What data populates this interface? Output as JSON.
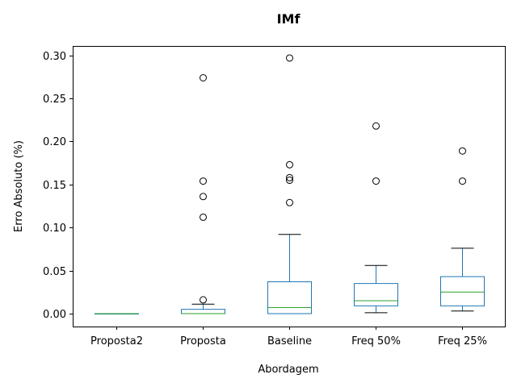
{
  "chart_data": {
    "type": "box",
    "title": "IMf",
    "xlabel": "Abordagem",
    "ylabel": "Erro Absoluto (%)",
    "ylim": [
      -0.015,
      0.311
    ],
    "yticks": [
      0.0,
      0.05,
      0.1,
      0.15,
      0.2,
      0.25,
      0.3
    ],
    "ytick_labels": [
      "0.00",
      "0.05",
      "0.10",
      "0.15",
      "0.20",
      "0.25",
      "0.30"
    ],
    "grid": false,
    "colors": {
      "box": "#1f77b4",
      "median": "#2ca02c",
      "whisker": "#1f77b4",
      "cap": "#000000",
      "flier": "#000000"
    },
    "categories": [
      "Proposta2",
      "Proposta",
      "Baseline",
      "Freq 50%",
      "Freq 25%"
    ],
    "boxes": [
      {
        "category": "Proposta2",
        "whislo": 0.0,
        "q1": 0.0,
        "med": 0.0,
        "q3": 0.0,
        "whishi": 0.0,
        "fliers": []
      },
      {
        "category": "Proposta",
        "whislo": 0.0,
        "q1": 0.0,
        "med": 0.0,
        "q3": 0.005,
        "whishi": 0.011,
        "fliers": [
          0.016,
          0.112,
          0.136,
          0.154,
          0.274
        ]
      },
      {
        "category": "Baseline",
        "whislo": 0.0,
        "q1": 0.0,
        "med": 0.007,
        "q3": 0.037,
        "whishi": 0.092,
        "fliers": [
          0.129,
          0.155,
          0.158,
          0.173,
          0.297
        ]
      },
      {
        "category": "Freq 50%",
        "whislo": 0.001,
        "q1": 0.009,
        "med": 0.015,
        "q3": 0.035,
        "whishi": 0.056,
        "fliers": [
          0.154,
          0.218
        ]
      },
      {
        "category": "Freq 25%",
        "whislo": 0.003,
        "q1": 0.009,
        "med": 0.025,
        "q3": 0.043,
        "whishi": 0.076,
        "fliers": [
          0.154,
          0.189
        ]
      }
    ]
  }
}
